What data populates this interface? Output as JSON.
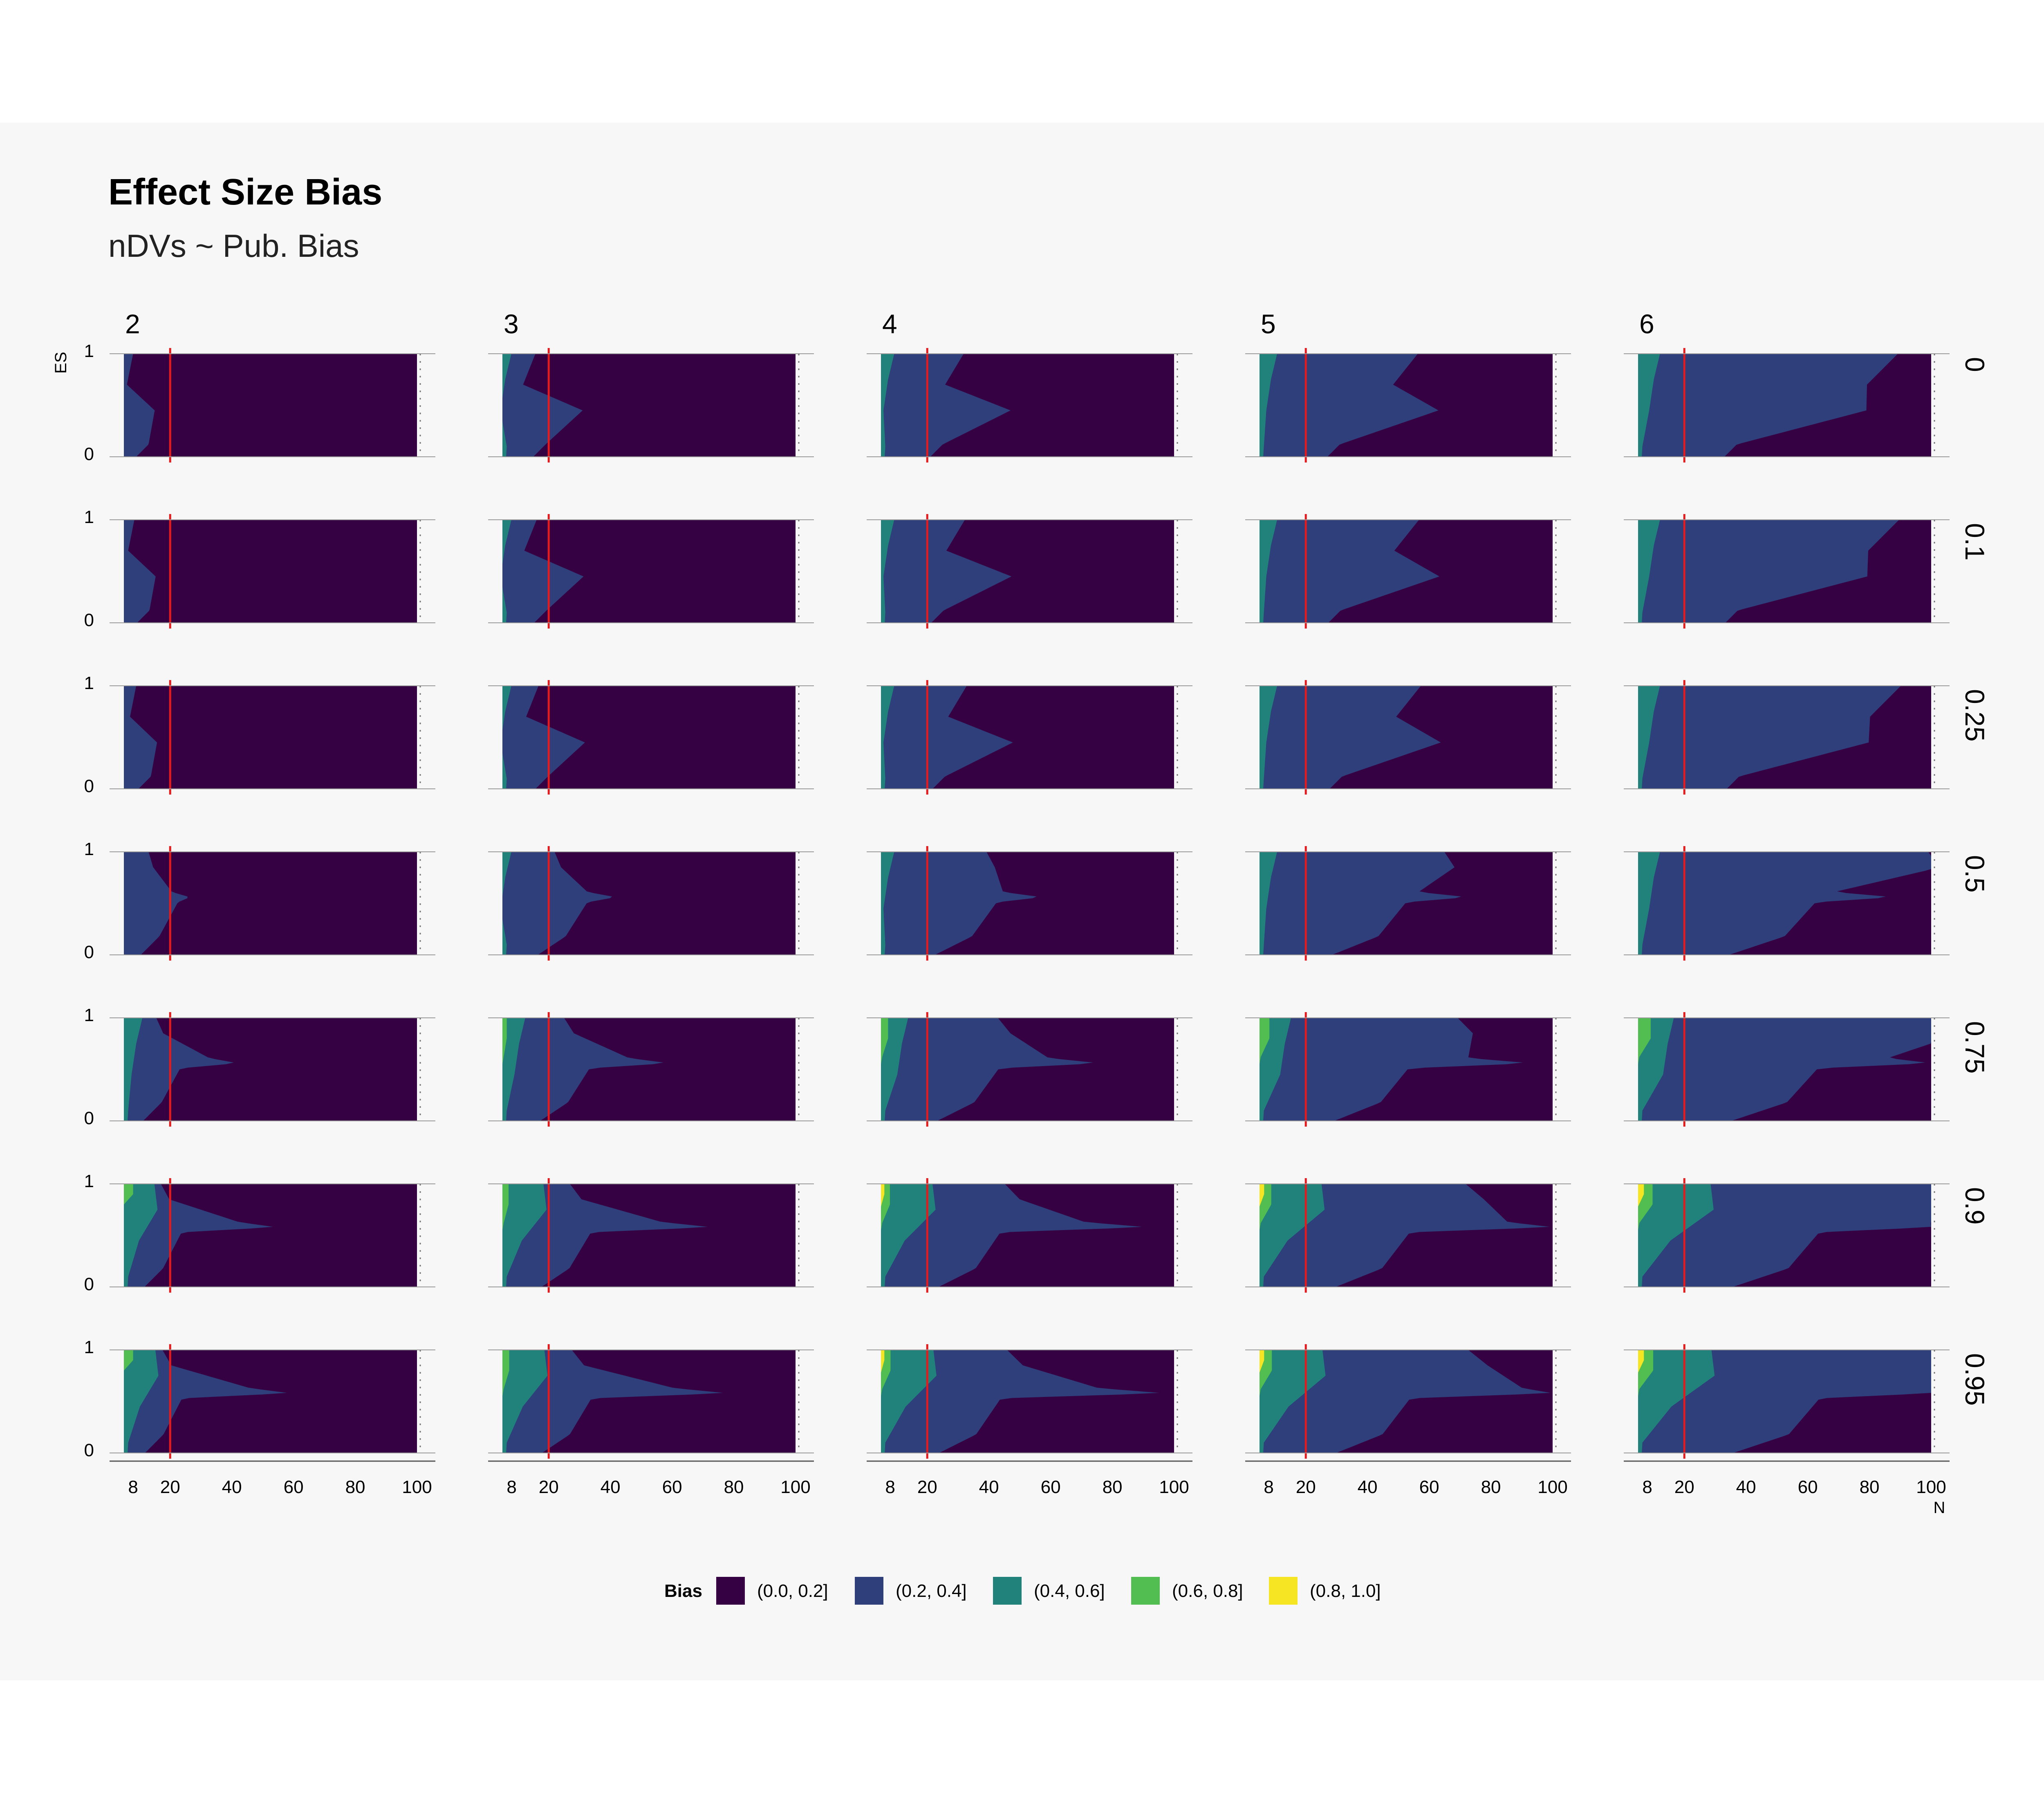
{
  "chart_data": {
    "type": "heatmap",
    "title": "Effect Size Bias",
    "subtitle": "nDVs ~ Pub. Bias",
    "xlabel": "N",
    "ylabel": "ES",
    "xlim": [
      5,
      100
    ],
    "ylim": [
      0,
      1
    ],
    "x_ticks": [
      "8",
      "20",
      "40",
      "60",
      "80",
      "100"
    ],
    "y_ticks": [
      "0",
      "1"
    ],
    "reference_line_x": 20,
    "reference_line_color": "#e41a1c",
    "columns": [
      "2",
      "3",
      "4",
      "5",
      "6"
    ],
    "rows": [
      "0",
      "0.1",
      "0.25",
      "0.5",
      "0.75",
      "0.9",
      "0.95"
    ],
    "legend": {
      "title": "Bias",
      "placement": "bottom",
      "entries": [
        {
          "label": "(0.0, 0.2]",
          "color": "#360142"
        },
        {
          "label": "(0.2, 0.4]",
          "color": "#2e3f7c"
        },
        {
          "label": "(0.4, 0.6]",
          "color": "#21827b"
        },
        {
          "label": "(0.6, 0.8]",
          "color": "#52be52"
        },
        {
          "label": "(0.8, 1.0]",
          "color": "#f5e523"
        }
      ]
    }
  }
}
